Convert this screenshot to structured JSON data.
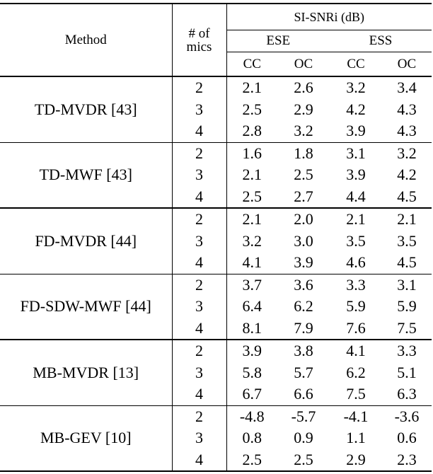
{
  "header": {
    "method": "Method",
    "mics_line1": "# of",
    "mics_line2": "mics",
    "metric": "SI-SNRi (dB)",
    "groups": [
      "ESE",
      "ESS"
    ],
    "subcols": [
      "CC",
      "OC",
      "CC",
      "OC"
    ]
  },
  "blocks": [
    {
      "method": "TD-MVDR [43]",
      "rows": [
        {
          "mics": "2",
          "vals": [
            "2.1",
            "2.6",
            "3.2",
            "3.4"
          ],
          "bold": [
            false,
            false,
            false,
            false
          ]
        },
        {
          "mics": "3",
          "vals": [
            "2.5",
            "2.9",
            "4.2",
            "4.3"
          ],
          "bold": [
            false,
            false,
            false,
            false
          ]
        },
        {
          "mics": "4",
          "vals": [
            "2.8",
            "3.2",
            "3.9",
            "4.3"
          ],
          "bold": [
            true,
            true,
            false,
            false
          ]
        }
      ]
    },
    {
      "method": "TD-MWF [43]",
      "rows": [
        {
          "mics": "2",
          "vals": [
            "1.6",
            "1.8",
            "3.1",
            "3.2"
          ],
          "bold": [
            false,
            false,
            false,
            false
          ]
        },
        {
          "mics": "3",
          "vals": [
            "2.1",
            "2.5",
            "3.9",
            "4.2"
          ],
          "bold": [
            false,
            false,
            false,
            false
          ]
        },
        {
          "mics": "4",
          "vals": [
            "2.5",
            "2.7",
            "4.4",
            "4.5"
          ],
          "bold": [
            false,
            false,
            true,
            true
          ]
        }
      ]
    },
    {
      "method": "FD-MVDR [44]",
      "rows": [
        {
          "mics": "2",
          "vals": [
            "2.1",
            "2.0",
            "2.1",
            "2.1"
          ],
          "bold": [
            false,
            false,
            false,
            false
          ]
        },
        {
          "mics": "3",
          "vals": [
            "3.2",
            "3.0",
            "3.5",
            "3.5"
          ],
          "bold": [
            false,
            false,
            false,
            false
          ]
        },
        {
          "mics": "4",
          "vals": [
            "4.1",
            "3.9",
            "4.6",
            "4.5"
          ],
          "bold": [
            false,
            false,
            false,
            false
          ]
        }
      ]
    },
    {
      "method": "FD-SDW-MWF [44]",
      "rows": [
        {
          "mics": "2",
          "vals": [
            "3.7",
            "3.6",
            "3.3",
            "3.1"
          ],
          "bold": [
            false,
            false,
            false,
            false
          ]
        },
        {
          "mics": "3",
          "vals": [
            "6.4",
            "6.2",
            "5.9",
            "5.9"
          ],
          "bold": [
            false,
            false,
            false,
            false
          ]
        },
        {
          "mics": "4",
          "vals": [
            "8.1",
            "7.9",
            "7.6",
            "7.5"
          ],
          "bold": [
            true,
            true,
            true,
            true
          ]
        }
      ]
    },
    {
      "method": "MB-MVDR [13]",
      "rows": [
        {
          "mics": "2",
          "vals": [
            "3.9",
            "3.8",
            "4.1",
            "3.3"
          ],
          "bold": [
            false,
            false,
            false,
            false
          ]
        },
        {
          "mics": "3",
          "vals": [
            "5.8",
            "5.7",
            "6.2",
            "5.1"
          ],
          "bold": [
            false,
            false,
            false,
            false
          ]
        },
        {
          "mics": "4",
          "vals": [
            "6.7",
            "6.6",
            "7.5",
            "6.3"
          ],
          "bold": [
            true,
            true,
            true,
            true
          ]
        }
      ]
    },
    {
      "method": "MB-GEV [10]",
      "rows": [
        {
          "mics": "2",
          "vals": [
            "-4.8",
            "-5.7",
            "-4.1",
            "-3.6"
          ],
          "bold": [
            false,
            false,
            false,
            false
          ]
        },
        {
          "mics": "3",
          "vals": [
            "0.8",
            "0.9",
            "1.1",
            "0.6"
          ],
          "bold": [
            false,
            false,
            false,
            false
          ]
        },
        {
          "mics": "4",
          "vals": [
            "2.5",
            "2.5",
            "2.9",
            "2.3"
          ],
          "bold": [
            false,
            false,
            false,
            false
          ]
        }
      ]
    }
  ]
}
